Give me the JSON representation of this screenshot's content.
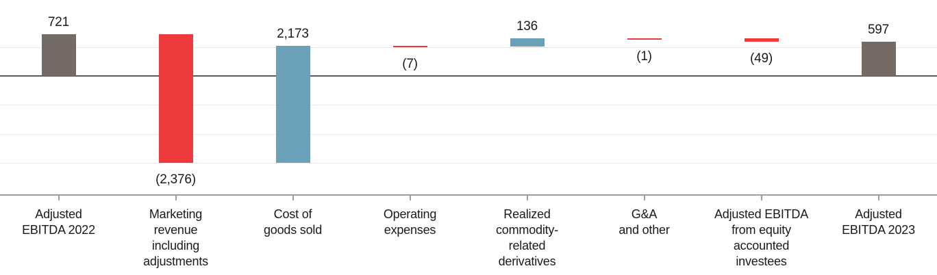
{
  "chart_data": {
    "type": "bar",
    "subtype": "waterfall",
    "title": "",
    "legend": "none",
    "grid": true,
    "categories": [
      "Adjusted EBITDA 2022",
      "Marketing revenue including adjustments",
      "Cost of goods sold",
      "Operating expenses",
      "Realized commodity-related derivatives",
      "G&A and other",
      "Adjusted EBITDA from equity accounted investees",
      "Adjusted EBITDA 2023"
    ],
    "series": [
      {
        "category": "Adjusted EBITDA 2022",
        "label_lines": [
          "Adjusted",
          "EBITDA 2022"
        ],
        "value": 721,
        "display": "721",
        "role": "total"
      },
      {
        "category": "Marketing revenue including adjustments",
        "label_lines": [
          "Marketing",
          "revenue",
          "including",
          "adjustments"
        ],
        "value": -2376,
        "display": "(2,376)",
        "role": "decrease"
      },
      {
        "category": "Cost of goods sold",
        "label_lines": [
          "Cost of",
          "goods sold"
        ],
        "value": 2173,
        "display": "2,173",
        "role": "increase"
      },
      {
        "category": "Operating expenses",
        "label_lines": [
          "Operating",
          "expenses"
        ],
        "value": -7,
        "display": "(7)",
        "role": "decrease"
      },
      {
        "category": "Realized commodity-related derivatives",
        "label_lines": [
          "Realized",
          "commodity-",
          "related",
          "derivatives"
        ],
        "value": 136,
        "display": "136",
        "role": "increase"
      },
      {
        "category": "G&A and other",
        "label_lines": [
          "G&A",
          "and other"
        ],
        "value": -1,
        "display": "(1)",
        "role": "decrease"
      },
      {
        "category": "Adjusted EBITDA from equity accounted investees",
        "label_lines": [
          "Adjusted EBITDA",
          "from equity",
          "accounted",
          "investees"
        ],
        "value": -49,
        "display": "(49)",
        "role": "decrease"
      },
      {
        "category": "Adjusted EBITDA 2023",
        "label_lines": [
          "Adjusted",
          "EBITDA 2023"
        ],
        "value": 597,
        "display": "597",
        "role": "total"
      }
    ],
    "axis": {
      "ymin": -1500,
      "ymax": 800,
      "grid_step": 500,
      "gridline_values": [
        500,
        -500,
        -1000,
        -1500
      ],
      "zero_line": true,
      "tick_position": "category-center"
    },
    "colors": {
      "total": "#756A64",
      "increase": "#6AA0B8",
      "decrease": "#EE3A3D",
      "zero_line": "#595959",
      "gridline": "#E7E7E7",
      "axis_line": "#9E9E9E",
      "tick": "#9E9E9E",
      "label_text": "#1A1A1A"
    }
  }
}
